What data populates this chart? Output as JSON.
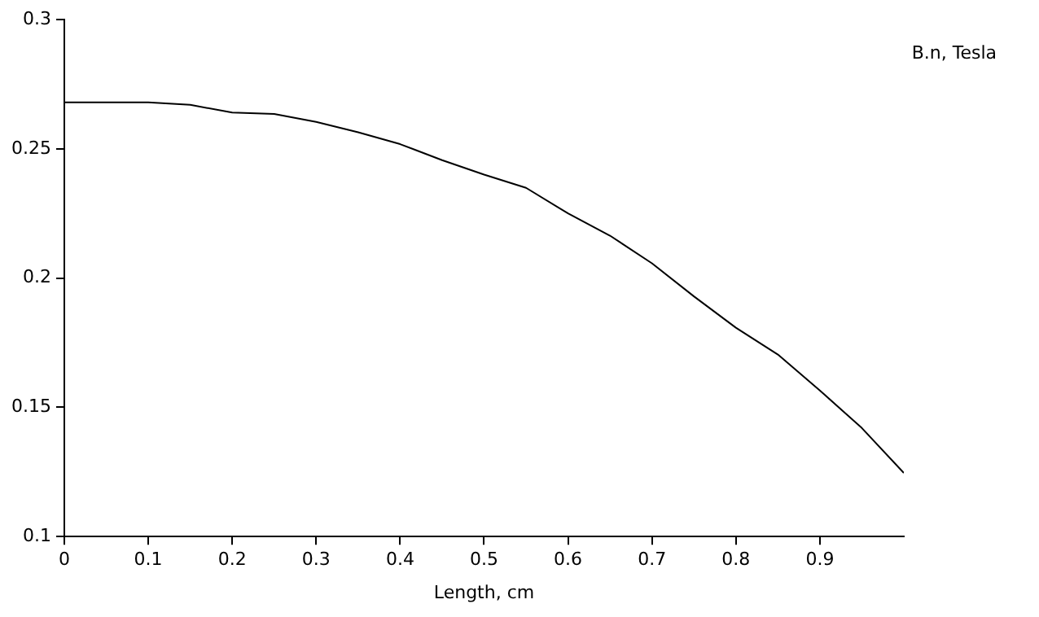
{
  "chart_data": {
    "type": "line",
    "xlabel": "Length, cm",
    "ylabel": "B.n, Tesla",
    "x": [
      0,
      0.1,
      0.15,
      0.2,
      0.25,
      0.3,
      0.35,
      0.4,
      0.45,
      0.5,
      0.55,
      0.6,
      0.65,
      0.7,
      0.75,
      0.8,
      0.85,
      0.9,
      0.95,
      1.0
    ],
    "series": [
      {
        "color": "#000000",
        "values": [
          0.268,
          0.268,
          0.267,
          0.264,
          0.2635,
          0.2604,
          0.2564,
          0.2518,
          0.2456,
          0.24,
          0.2349,
          0.225,
          0.2164,
          0.2057,
          0.1929,
          0.1808,
          0.1704,
          0.1565,
          0.142,
          0.1246
        ]
      }
    ],
    "xlim": [
      0,
      1
    ],
    "xticks": [
      0,
      0.1,
      0.2,
      0.3,
      0.4,
      0.5,
      0.6,
      0.7,
      0.8,
      0.9
    ],
    "ylim": [
      0.1,
      0.3
    ],
    "yticks": [
      0.1,
      0.15,
      0.2,
      0.25,
      0.3
    ],
    "grid": false,
    "legend": false,
    "marker": "none",
    "line_style": "solid"
  }
}
